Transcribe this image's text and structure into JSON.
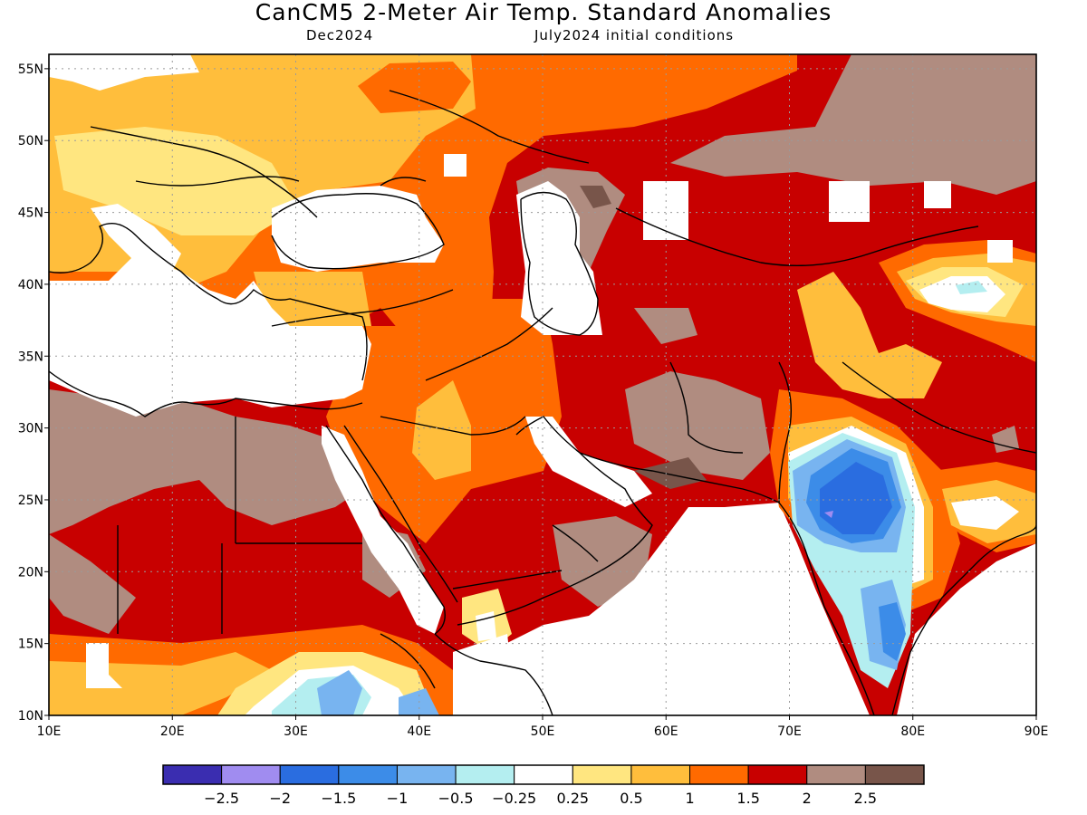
{
  "title": "CanCM5 2-Meter Air Temp. Standard Anomalies",
  "subtitle_left": "Dec2024",
  "subtitle_right": "July2024 initial conditions",
  "map": {
    "lon_range": [
      10,
      90
    ],
    "lat_range": [
      10,
      56
    ],
    "lon_ticks": [
      "10E",
      "20E",
      "30E",
      "40E",
      "50E",
      "60E",
      "70E",
      "80E",
      "90E"
    ],
    "lat_ticks": [
      "10N",
      "15N",
      "20N",
      "25N",
      "30N",
      "35N",
      "40N",
      "45N",
      "50N",
      "55N"
    ],
    "grid": "dotted"
  },
  "colorbar": {
    "colors": [
      "#3a2db0",
      "#a08cf0",
      "#2a6de0",
      "#3c8ce8",
      "#78b4f0",
      "#b4eef0",
      "#ffffff",
      "#ffe680",
      "#ffbe3c",
      "#ff6a00",
      "#c80000",
      "#b08c80",
      "#78554a"
    ],
    "labels": [
      "-2.5",
      "-2",
      "-1.5",
      "-1",
      "-0.5",
      "-0.25",
      "0.25",
      "0.5",
      "1",
      "1.5",
      "2",
      "2.5"
    ]
  }
}
